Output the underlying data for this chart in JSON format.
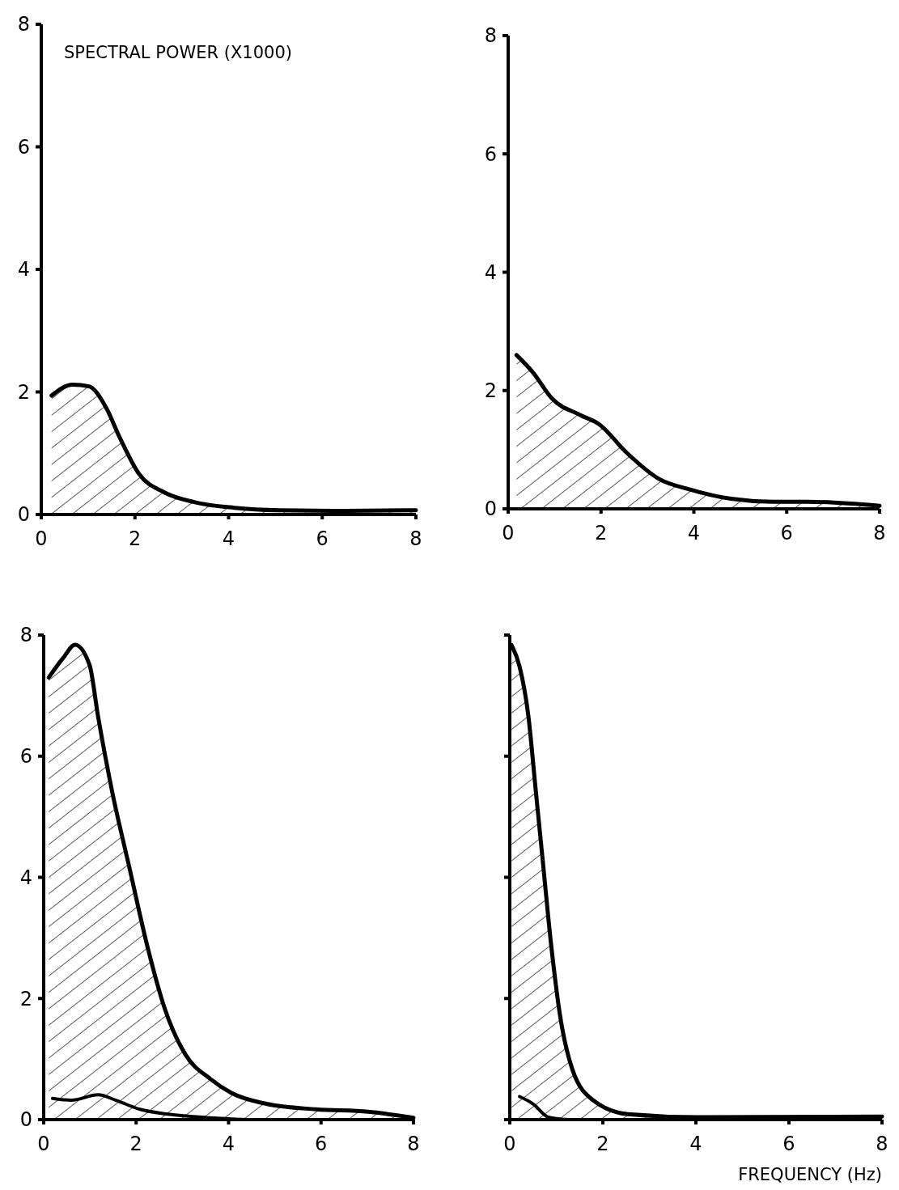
{
  "chart_data": [
    {
      "type": "area",
      "ylabel": "SPECTRAL POWER (X1000)",
      "xlim": [
        0,
        8
      ],
      "ylim": [
        0,
        8
      ],
      "xticks": [
        0,
        2,
        4,
        6,
        8
      ],
      "yticks": [
        0,
        2,
        4,
        6,
        8
      ],
      "series": [
        {
          "color": "#000000",
          "x": [
            0.22,
            0.67,
            1.02,
            1.38,
            1.68,
            2.09,
            2.63,
            3.28,
            4.12,
            5.08,
            6.5,
            8
          ],
          "values": [
            1.94,
            2.12,
            2.09,
            1.75,
            1.25,
            0.66,
            0.36,
            0.2,
            0.11,
            0.07,
            0.06,
            0.07
          ]
        }
      ]
    },
    {
      "type": "area",
      "xlim": [
        0,
        8
      ],
      "ylim": [
        0,
        8
      ],
      "xticks": [
        0,
        2,
        4,
        6,
        8
      ],
      "yticks": [
        0,
        2,
        4,
        6,
        8
      ],
      "series": [
        {
          "color": "#000000",
          "x": [
            0.18,
            0.53,
            0.95,
            1.54,
            1.96,
            2.55,
            3.26,
            3.9,
            4.8,
            5.69,
            6.45,
            8
          ],
          "values": [
            2.6,
            2.31,
            1.86,
            1.59,
            1.43,
            0.95,
            0.5,
            0.33,
            0.17,
            0.12,
            0.12,
            0.05
          ]
        }
      ]
    },
    {
      "type": "area",
      "xlim": [
        0,
        8
      ],
      "ylim": [
        0,
        8
      ],
      "xticks": [
        0,
        2,
        4,
        6,
        8
      ],
      "yticks": [
        0,
        2,
        4,
        6,
        8
      ],
      "series": [
        {
          "color": "#000000",
          "x": [
            0.11,
            0.42,
            0.68,
            0.99,
            1.18,
            1.48,
            1.86,
            2.24,
            2.62,
            3.07,
            3.61,
            4.06,
            4.82,
            5.89,
            7.02,
            8
          ],
          "values": [
            7.3,
            7.62,
            7.84,
            7.51,
            6.64,
            5.42,
            4.14,
            2.87,
            1.83,
            1.07,
            0.67,
            0.44,
            0.26,
            0.17,
            0.13,
            0.03
          ]
        },
        {
          "type": "line",
          "color": "#000000",
          "x": [
            0.19,
            0.6,
            1.18,
            1.56,
            2.08,
            2.69,
            3.6,
            4.4
          ],
          "values": [
            0.35,
            0.32,
            0.41,
            0.32,
            0.17,
            0.09,
            0.03,
            0
          ]
        }
      ]
    },
    {
      "type": "area",
      "xlabel": "FREQUENCY (Hz)",
      "tick_labels": "x",
      "xlim": [
        0,
        8
      ],
      "ylim": [
        0,
        8
      ],
      "xticks": [
        0,
        2,
        4,
        6,
        8
      ],
      "yticks": [
        {
          "value": 0,
          "label": null
        },
        {
          "value": 2,
          "label": null
        },
        {
          "value": 4,
          "label": null
        },
        {
          "value": 6,
          "label": null
        },
        {
          "value": 8,
          "label": null
        }
      ],
      "series": [
        {
          "color": "#000000",
          "x": [
            0.04,
            0.21,
            0.4,
            0.55,
            0.7,
            0.89,
            1.08,
            1.34,
            1.79,
            2.54,
            4.05,
            8
          ],
          "values": [
            7.83,
            7.48,
            6.66,
            5.5,
            4.34,
            2.88,
            1.72,
            0.84,
            0.32,
            0.09,
            0.04,
            0.05
          ]
        },
        {
          "type": "line",
          "color": "#000000",
          "x": [
            0.21,
            0.5,
            0.83,
            1.25
          ],
          "values": [
            0.38,
            0.26,
            0.04,
            0
          ]
        }
      ]
    }
  ]
}
